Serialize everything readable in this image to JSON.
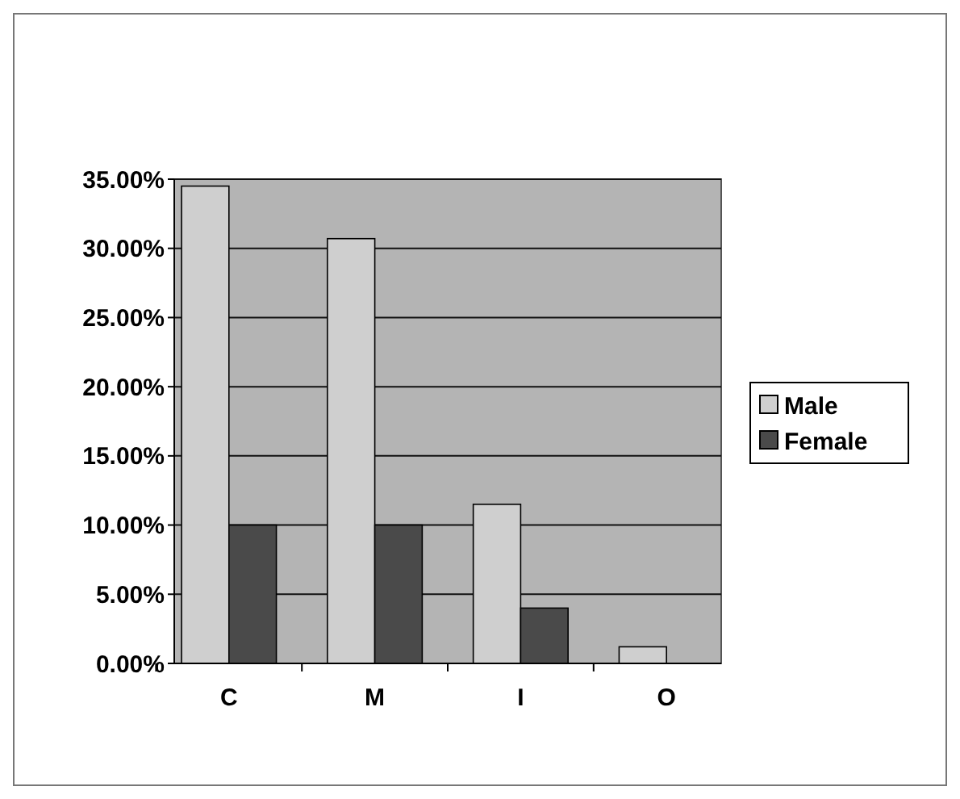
{
  "chart_data": {
    "type": "bar",
    "categories": [
      "C",
      "M",
      "I",
      "O"
    ],
    "series": [
      {
        "name": "Male",
        "color": "#cfcfcf",
        "values": [
          34.5,
          30.7,
          11.5,
          1.2
        ]
      },
      {
        "name": "Female",
        "color": "#4a4a4a",
        "values": [
          10,
          10,
          4,
          0
        ]
      }
    ],
    "ylim": [
      0,
      35
    ],
    "yticks": [
      {
        "value": 0,
        "label": "0.00%"
      },
      {
        "value": 5,
        "label": "5.00%"
      },
      {
        "value": 10,
        "label": "10.00%"
      },
      {
        "value": 15,
        "label": "15.00%"
      },
      {
        "value": 20,
        "label": "20.00%"
      },
      {
        "value": 25,
        "label": "25.00%"
      },
      {
        "value": 30,
        "label": "30.00%"
      },
      {
        "value": 35,
        "label": "35.00%"
      }
    ],
    "grid": "y",
    "legend": "right"
  }
}
